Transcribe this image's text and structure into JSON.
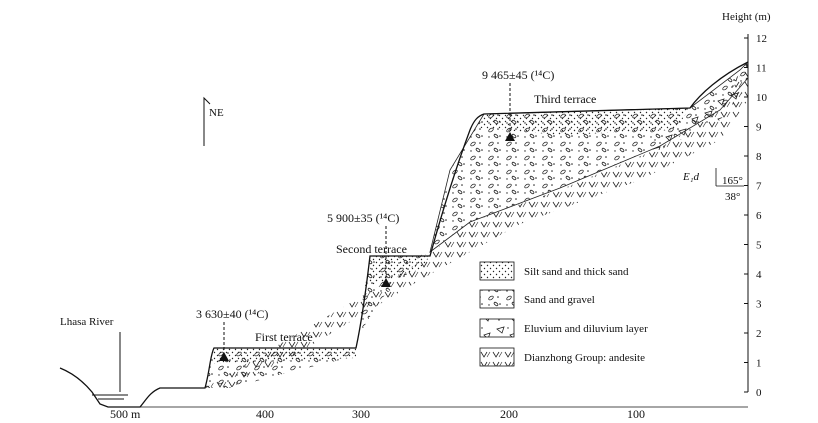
{
  "axis": {
    "title": "Height (m)",
    "ticks": [
      "0",
      "1",
      "2",
      "3",
      "4",
      "5",
      "6",
      "7",
      "8",
      "9",
      "10",
      "11",
      "12"
    ],
    "x_ticks": [
      "500 m",
      "400",
      "300",
      "200",
      "100"
    ]
  },
  "labels": {
    "river": "Lhasa River",
    "north": "NE",
    "first_terrace": "First terrace",
    "second_terrace": "Second terrace",
    "third_terrace": "Third terrace",
    "formation": "E₁d",
    "dip_azimuth": "165°",
    "dip_angle": "38°"
  },
  "dates": {
    "first": "3 630±40 (¹⁴C)",
    "second": "5 900±35 (¹⁴C)",
    "third": "9 465±45 (¹⁴C)"
  },
  "legend": [
    {
      "pattern": "silt-sand",
      "label": "Silt sand and thick sand"
    },
    {
      "pattern": "sand-gravel",
      "label": "Sand and gravel"
    },
    {
      "pattern": "eluvium",
      "label": "Eluvium and diluvium layer"
    },
    {
      "pattern": "andesite",
      "label": "Dianzhong Group: andesite"
    }
  ]
}
